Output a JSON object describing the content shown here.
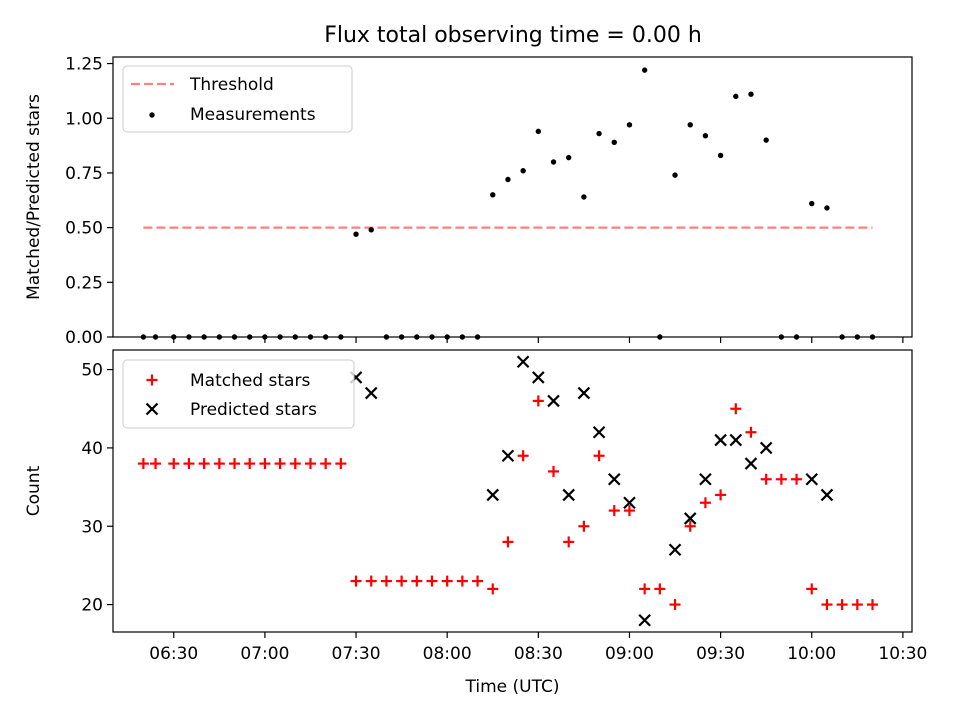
{
  "title": "Flux total observing time = 0.00 h",
  "colors": {
    "threshold": "#ff7f7f",
    "measurements": "#000000",
    "matched": "#ff0000",
    "predicted": "#000000"
  },
  "chart_data": [
    {
      "type": "scatter",
      "title": "Flux total observing time = 0.00 h",
      "xlabel": "",
      "ylabel": "Matched/Predicted stars",
      "xlim": [
        "06:10",
        "10:33"
      ],
      "ylim": [
        0,
        1.28
      ],
      "y_ticks": [
        "0.00",
        "0.25",
        "0.50",
        "0.75",
        "1.00",
        "1.25"
      ],
      "legend": {
        "placement": "upper-left",
        "entries": [
          "Threshold",
          "Measurements"
        ]
      },
      "grid": false,
      "series": [
        {
          "name": "Threshold",
          "style": "dashed-line",
          "points": [
            [
              "06:20",
              0.5
            ],
            [
              "10:20",
              0.5
            ]
          ]
        },
        {
          "name": "Measurements",
          "style": "dot",
          "points": [
            [
              "06:20",
              0.0
            ],
            [
              "06:24",
              0.0
            ],
            [
              "06:30",
              0.0
            ],
            [
              "06:35",
              0.0
            ],
            [
              "06:40",
              0.0
            ],
            [
              "06:45",
              0.0
            ],
            [
              "06:50",
              0.0
            ],
            [
              "06:55",
              0.0
            ],
            [
              "07:00",
              0.0
            ],
            [
              "07:05",
              0.0
            ],
            [
              "07:10",
              0.0
            ],
            [
              "07:15",
              0.0
            ],
            [
              "07:20",
              0.0
            ],
            [
              "07:25",
              0.0
            ],
            [
              "07:30",
              0.47
            ],
            [
              "07:35",
              0.49
            ],
            [
              "07:40",
              0.0
            ],
            [
              "07:45",
              0.0
            ],
            [
              "07:50",
              0.0
            ],
            [
              "07:55",
              0.0
            ],
            [
              "08:00",
              0.0
            ],
            [
              "08:05",
              0.0
            ],
            [
              "08:10",
              0.0
            ],
            [
              "08:15",
              0.65
            ],
            [
              "08:20",
              0.72
            ],
            [
              "08:25",
              0.76
            ],
            [
              "08:30",
              0.94
            ],
            [
              "08:35",
              0.8
            ],
            [
              "08:40",
              0.82
            ],
            [
              "08:45",
              0.64
            ],
            [
              "08:50",
              0.93
            ],
            [
              "08:55",
              0.89
            ],
            [
              "09:00",
              0.97
            ],
            [
              "09:05",
              1.22
            ],
            [
              "09:10",
              0.0
            ],
            [
              "09:15",
              0.74
            ],
            [
              "09:20",
              0.97
            ],
            [
              "09:25",
              0.92
            ],
            [
              "09:30",
              0.83
            ],
            [
              "09:35",
              1.1
            ],
            [
              "09:40",
              1.11
            ],
            [
              "09:45",
              0.9
            ],
            [
              "09:50",
              0.0
            ],
            [
              "09:55",
              0.0
            ],
            [
              "10:00",
              0.61
            ],
            [
              "10:05",
              0.59
            ],
            [
              "10:10",
              0.0
            ],
            [
              "10:15",
              0.0
            ],
            [
              "10:20",
              0.0
            ]
          ]
        }
      ]
    },
    {
      "type": "scatter",
      "title": "",
      "xlabel": "Time (UTC)",
      "ylabel": "Count",
      "xlim": [
        "06:10",
        "10:33"
      ],
      "ylim": [
        16.5,
        52.5
      ],
      "y_ticks": [
        "20",
        "30",
        "40",
        "50"
      ],
      "x_ticks": [
        "06:30",
        "07:00",
        "07:30",
        "08:00",
        "08:30",
        "09:00",
        "09:30",
        "10:00",
        "10:30"
      ],
      "legend": {
        "placement": "upper-left",
        "entries": [
          "Matched stars",
          "Predicted stars"
        ]
      },
      "grid": false,
      "series": [
        {
          "name": "Matched stars",
          "marker": "plus",
          "points": [
            [
              "06:20",
              38
            ],
            [
              "06:24",
              38
            ],
            [
              "06:30",
              38
            ],
            [
              "06:35",
              38
            ],
            [
              "06:40",
              38
            ],
            [
              "06:45",
              38
            ],
            [
              "06:50",
              38
            ],
            [
              "06:55",
              38
            ],
            [
              "07:00",
              38
            ],
            [
              "07:05",
              38
            ],
            [
              "07:10",
              38
            ],
            [
              "07:15",
              38
            ],
            [
              "07:20",
              38
            ],
            [
              "07:25",
              38
            ],
            [
              "07:30",
              23
            ],
            [
              "07:35",
              23
            ],
            [
              "07:40",
              23
            ],
            [
              "07:45",
              23
            ],
            [
              "07:50",
              23
            ],
            [
              "07:55",
              23
            ],
            [
              "08:00",
              23
            ],
            [
              "08:05",
              23
            ],
            [
              "08:10",
              23
            ],
            [
              "08:15",
              22
            ],
            [
              "08:20",
              28
            ],
            [
              "08:25",
              39
            ],
            [
              "08:30",
              46
            ],
            [
              "08:35",
              37
            ],
            [
              "08:40",
              28
            ],
            [
              "08:45",
              30
            ],
            [
              "08:50",
              39
            ],
            [
              "08:55",
              32
            ],
            [
              "09:00",
              32
            ],
            [
              "09:05",
              22
            ],
            [
              "09:10",
              22
            ],
            [
              "09:15",
              20
            ],
            [
              "09:20",
              30
            ],
            [
              "09:25",
              33
            ],
            [
              "09:30",
              34
            ],
            [
              "09:35",
              45
            ],
            [
              "09:40",
              42
            ],
            [
              "09:45",
              36
            ],
            [
              "09:50",
              36
            ],
            [
              "09:55",
              36
            ],
            [
              "10:00",
              22
            ],
            [
              "10:05",
              20
            ],
            [
              "10:10",
              20
            ],
            [
              "10:15",
              20
            ],
            [
              "10:20",
              20
            ]
          ]
        },
        {
          "name": "Predicted stars",
          "marker": "x",
          "points": [
            [
              "07:30",
              49
            ],
            [
              "07:35",
              47
            ],
            [
              "08:15",
              34
            ],
            [
              "08:20",
              39
            ],
            [
              "08:25",
              51
            ],
            [
              "08:30",
              49
            ],
            [
              "08:35",
              46
            ],
            [
              "08:40",
              34
            ],
            [
              "08:45",
              47
            ],
            [
              "08:50",
              42
            ],
            [
              "08:55",
              36
            ],
            [
              "09:00",
              33
            ],
            [
              "09:05",
              18
            ],
            [
              "09:15",
              27
            ],
            [
              "09:20",
              31
            ],
            [
              "09:25",
              36
            ],
            [
              "09:30",
              41
            ],
            [
              "09:35",
              41
            ],
            [
              "09:40",
              38
            ],
            [
              "09:45",
              40
            ],
            [
              "10:00",
              36
            ],
            [
              "10:05",
              34
            ]
          ]
        }
      ]
    }
  ]
}
